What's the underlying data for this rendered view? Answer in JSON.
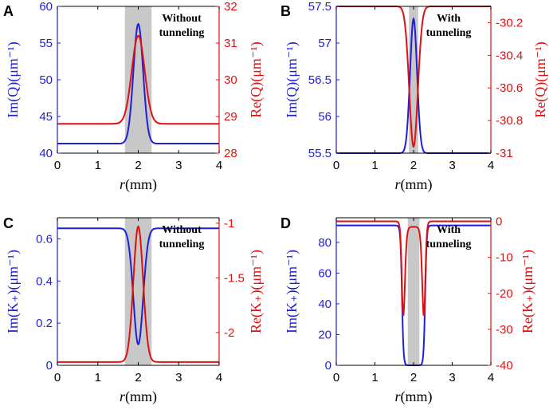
{
  "chart_data": [
    {
      "type": "line",
      "panel_letter": "A",
      "annotation": [
        "Without",
        "tunneling"
      ],
      "xlabel_var": "r",
      "xlabel_unit": "(mm)",
      "ylabel_left": "Im(Q)(μm⁻¹)",
      "ylabel_right": "Re(Q)(μm⁻¹)",
      "xlim": [
        0,
        4
      ],
      "ylim_left": [
        40,
        60
      ],
      "ylim_right": [
        28,
        32
      ],
      "xticks": [
        "0",
        "1",
        "2",
        "3",
        "4"
      ],
      "yticks_left": [
        "40",
        "45",
        "50",
        "55",
        "60"
      ],
      "yticks_right": [
        "28",
        "29",
        "30",
        "31",
        "32"
      ],
      "shaded_region": [
        1.67,
        2.33
      ],
      "series": [
        {
          "name": "Im(Q)",
          "axis": "left",
          "color": "#1f1fd6",
          "baseline": 41.3,
          "peak": 57.6,
          "center": 2.0,
          "width": 0.12,
          "dip": false
        },
        {
          "name": "Re(Q)",
          "axis": "right",
          "color": "#e01010",
          "baseline": 28.8,
          "peak": 31.2,
          "center": 2.0,
          "width": 0.16,
          "dip": false
        }
      ]
    },
    {
      "type": "line",
      "panel_letter": "B",
      "annotation": [
        "With",
        "tunneling"
      ],
      "xlabel_var": "r",
      "xlabel_unit": "(mm)",
      "ylabel_left": "Im(Q)(μm⁻¹)",
      "ylabel_right": "Re(Q)(μm⁻¹)",
      "xlim": [
        0,
        4
      ],
      "ylim_left": [
        55.5,
        57.5
      ],
      "ylim_right": [
        -31,
        -30.1
      ],
      "xticks": [
        "0",
        "1",
        "2",
        "3",
        "4"
      ],
      "yticks_left": [
        "55.5",
        "56",
        "56.5",
        "57",
        "57.5"
      ],
      "yticks_right": [
        "-31",
        "-30.8",
        "-30.6",
        "-30.4",
        "-30.2"
      ],
      "ytick_values_left": [
        55.5,
        56,
        56.5,
        57,
        57.5
      ],
      "ytick_values_right": [
        -31,
        -30.8,
        -30.6,
        -30.4,
        -30.2
      ],
      "shaded_region": [
        1.88,
        2.12
      ],
      "series": [
        {
          "name": "Im(Q)",
          "axis": "left",
          "color": "#1f1fd6",
          "baseline": 55.5,
          "peak": 57.33,
          "center": 2.0,
          "width": 0.09,
          "dip": false
        },
        {
          "name": "Re(Q)",
          "axis": "right",
          "color": "#e01010",
          "baseline": -30.1,
          "peak": -30.96,
          "center": 2.0,
          "width": 0.11,
          "dip": true
        }
      ]
    },
    {
      "type": "line",
      "panel_letter": "C",
      "annotation": [
        "Without",
        "tunneling"
      ],
      "xlabel_var": "r",
      "xlabel_unit": "(mm)",
      "ylabel_left": "Im(K₊)(μm⁻¹)",
      "ylabel_right": "Re(K₊)(μm⁻¹)",
      "xlim": [
        0,
        4
      ],
      "ylim_left": [
        0,
        0.7
      ],
      "ylim_right": [
        -2.3,
        -0.95
      ],
      "xticks": [
        "0",
        "1",
        "2",
        "3",
        "4"
      ],
      "yticks_left": [
        "0",
        "0.2",
        "0.4",
        "0.6"
      ],
      "yticks_right": [
        "-2",
        "-1.5",
        "-1"
      ],
      "ytick_values_left": [
        0,
        0.2,
        0.4,
        0.6
      ],
      "ytick_values_right": [
        -2,
        -1.5,
        -1
      ],
      "shaded_region": [
        1.67,
        2.33
      ],
      "series": [
        {
          "name": "Im(K₊)",
          "axis": "left",
          "color": "#1f1fd6",
          "baseline": 0.65,
          "peak": 0.1,
          "center": 2.0,
          "width": 0.12,
          "dip": true
        },
        {
          "name": "Re(K₊)",
          "axis": "right",
          "color": "#e01010",
          "baseline": -2.27,
          "peak": -1.03,
          "center": 2.0,
          "width": 0.12,
          "dip": false
        }
      ]
    },
    {
      "type": "line",
      "panel_letter": "D",
      "annotation": [
        "With",
        "tunneling"
      ],
      "xlabel_var": "r",
      "xlabel_unit": "(mm)",
      "ylabel_left": "Im(K₊)(μm⁻¹)",
      "ylabel_right": "Re(K₊)(μm⁻¹)",
      "xlim": [
        0,
        4
      ],
      "ylim_left": [
        0,
        96
      ],
      "ylim_right": [
        -40,
        1
      ],
      "xticks": [
        "0",
        "1",
        "2",
        "3",
        "4"
      ],
      "yticks_left": [
        "0",
        "20",
        "40",
        "60",
        "80"
      ],
      "yticks_right": [
        "-40",
        "-30",
        "-20",
        "-10",
        "0"
      ],
      "ytick_values_left": [
        0,
        20,
        40,
        60,
        80
      ],
      "ytick_values_right": [
        -40,
        -30,
        -20,
        -10,
        0
      ],
      "shaded_region": [
        1.85,
        2.15
      ],
      "series": [
        {
          "name": "Im(K₊)",
          "axis": "left",
          "color": "#1f1fd6",
          "baseline": 91,
          "bottom": 0,
          "center": 2.0,
          "half_width": 0.3,
          "edge": 0.02,
          "shape": "well"
        },
        {
          "name": "Re(K₊)",
          "axis": "right",
          "color": "#e01010",
          "baseline": 0,
          "bottom": -38,
          "inner_peak": -1.5,
          "center": 2.0,
          "half_width": 0.3,
          "edge": 0.02,
          "shape": "double-dip"
        }
      ]
    }
  ]
}
